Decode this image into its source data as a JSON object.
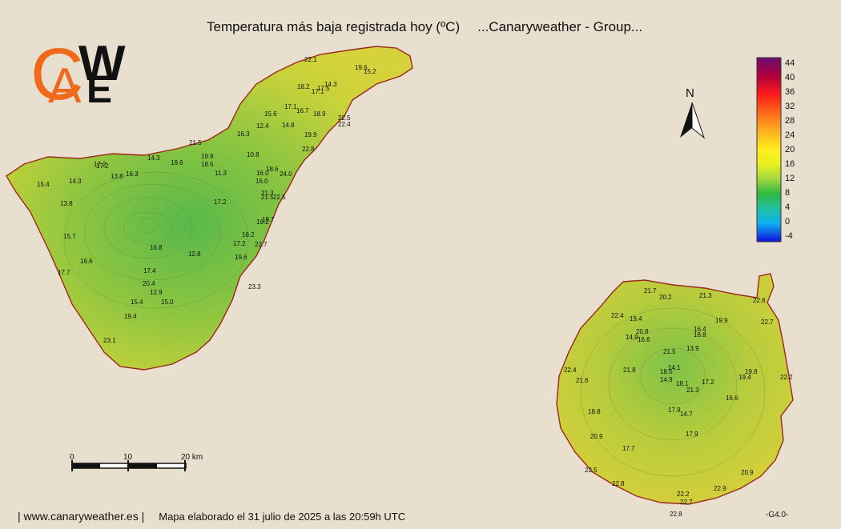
{
  "title": "Temperatura más baja registrada hoy (ºC)",
  "subtitle": "...Canaryweather - Group...",
  "logo": {
    "letters": [
      "C",
      "A",
      "W",
      "E"
    ],
    "colors": {
      "orange": "#f06a1c",
      "black": "#111111"
    }
  },
  "footer": {
    "site": "| www.canaryweather.es |",
    "note": "Mapa elaborado el 31 julio de 2025 a las 20:59h UTC",
    "version": "-G4.0-"
  },
  "north_label": "N",
  "scale": {
    "ticks": [
      "0",
      "10",
      "20 km"
    ]
  },
  "legend": {
    "unit": "ºC",
    "labels": [
      "44",
      "40",
      "36",
      "32",
      "28",
      "24",
      "20",
      "16",
      "12",
      "8",
      "4",
      "0",
      "-4"
    ],
    "colors": [
      "#6a0f6e",
      "#b0003c",
      "#ff1a1a",
      "#ff5a1a",
      "#ffa020",
      "#ffe020",
      "#f4f400",
      "#c0e040",
      "#40c040",
      "#20c080",
      "#20c0e0",
      "#00a0ff",
      "#1010e0"
    ]
  },
  "islands": {
    "tenerife": {
      "name": "Tenerife",
      "readings": [
        "22.1",
        "19.6",
        "15.2",
        "18.2",
        "17.5",
        "14.3",
        "17.1",
        "17.1",
        "16.7",
        "15.6",
        "18.9",
        "22.5",
        "22.4",
        "12.4",
        "14.8",
        "16.3",
        "19.9",
        "21.5",
        "22.8",
        "19.9",
        "10.8",
        "18.5",
        "11.3",
        "16.0",
        "18.6",
        "24.0",
        "16.0",
        "21.3",
        "21.5",
        "22.5",
        "17.2",
        "14.3",
        "19.6",
        "17.2",
        "13.8",
        "16.3",
        "15.4",
        "14.3",
        "13.8",
        "17.2",
        "19.7",
        "19.2",
        "15.7",
        "16.2",
        "17.2",
        "22.7",
        "16.8",
        "12.8",
        "19.6",
        "16.6",
        "17.7",
        "17.4",
        "20.4",
        "12.9",
        "23.3",
        "15.4",
        "15.0",
        "19.4",
        "23.1"
      ]
    },
    "gran_canaria": {
      "name": "Gran Canaria",
      "readings": [
        "21.7",
        "20.2",
        "21.3",
        "22.6",
        "22.4",
        "19.4",
        "19.9",
        "22.7",
        "16.4",
        "20.8",
        "16.8",
        "14.9",
        "16.6",
        "13.9",
        "21.5",
        "14.1",
        "18.5",
        "22.4",
        "21.8",
        "14.9",
        "18.1",
        "17.2",
        "19.8",
        "22.2",
        "21.3",
        "21.6",
        "19.4",
        "16.6",
        "18.8",
        "17.9",
        "14.7",
        "17.9",
        "20.9",
        "17.7",
        "20.9",
        "22.5",
        "22.2",
        "22.8",
        "22.9",
        "22.7",
        "22.8"
      ]
    }
  }
}
